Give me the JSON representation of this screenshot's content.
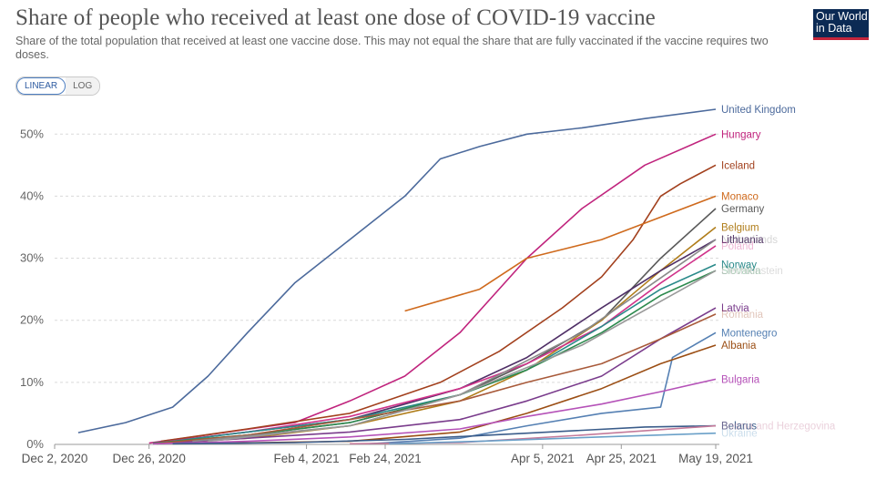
{
  "header": {
    "title": "Share of people who received at least one dose of COVID-19 vaccine",
    "subtitle": "Share of the total population that received at least one vaccine dose. This may not equal the share that are fully vaccinated if the vaccine requires two doses.",
    "logo_line1": "Our World",
    "logo_line2": "in Data"
  },
  "controls": {
    "linear_label": "LINEAR",
    "log_label": "LOG",
    "active": "LINEAR"
  },
  "chart_data": {
    "type": "line",
    "title": "Share of people who received at least one dose of COVID-19 vaccine",
    "ylabel": "",
    "xlabel": "",
    "ylim": [
      0,
      54
    ],
    "xlim": [
      "2020-12-02",
      "2021-05-19"
    ],
    "x_ticks": [
      "Dec 2, 2020",
      "Dec 26, 2020",
      "Feb 4, 2021",
      "Feb 24, 2021",
      "Apr 5, 2021",
      "Apr 25, 2021",
      "May 19, 2021"
    ],
    "x_tick_dates": [
      "2020-12-02",
      "2020-12-26",
      "2021-02-04",
      "2021-02-24",
      "2021-04-05",
      "2021-04-25",
      "2021-05-19"
    ],
    "y_ticks": [
      0,
      10,
      20,
      30,
      40,
      50
    ],
    "y_tick_labels": [
      "0%",
      "10%",
      "20%",
      "30%",
      "40%",
      "50%"
    ],
    "grid": true,
    "legend": "right-end labels",
    "series": [
      {
        "name": "United Kingdom",
        "color": "#4c6a9c",
        "x": [
          "2020-12-08",
          "2020-12-20",
          "2021-01-01",
          "2021-01-10",
          "2021-01-20",
          "2021-02-01",
          "2021-02-15",
          "2021-03-01",
          "2021-03-10",
          "2021-03-20",
          "2021-04-01",
          "2021-04-15",
          "2021-05-01",
          "2021-05-19"
        ],
        "y": [
          1.9,
          3.5,
          6,
          11,
          18,
          26,
          33,
          40,
          46,
          48,
          50,
          51,
          52.5,
          54
        ]
      },
      {
        "name": "Hungary",
        "color": "#c0247d",
        "x": [
          "2020-12-26",
          "2021-01-15",
          "2021-02-01",
          "2021-02-15",
          "2021-03-01",
          "2021-03-15",
          "2021-04-01",
          "2021-04-15",
          "2021-05-01",
          "2021-05-19"
        ],
        "y": [
          0.2,
          2.0,
          3.5,
          7,
          11,
          18,
          30,
          38,
          45,
          50
        ]
      },
      {
        "name": "Iceland",
        "color": "#a2401d",
        "x": [
          "2020-12-29",
          "2021-01-20",
          "2021-02-15",
          "2021-03-10",
          "2021-03-25",
          "2021-04-10",
          "2021-04-20",
          "2021-04-28",
          "2021-05-05",
          "2021-05-10",
          "2021-05-19"
        ],
        "y": [
          0.5,
          2.5,
          5,
          10,
          15,
          22,
          27,
          33,
          40,
          42,
          45
        ]
      },
      {
        "name": "Monaco",
        "color": "#cf6a1d",
        "x": [
          "2021-03-01",
          "2021-03-20",
          "2021-04-01",
          "2021-04-20",
          "2021-05-19"
        ],
        "y": [
          21.5,
          25,
          30,
          33,
          40
        ]
      },
      {
        "name": "Germany",
        "color": "#5a5a5a",
        "x": [
          "2020-12-27",
          "2021-01-20",
          "2021-02-15",
          "2021-03-15",
          "2021-04-01",
          "2021-04-20",
          "2021-05-05",
          "2021-05-19"
        ],
        "y": [
          0.2,
          1.5,
          3.5,
          8,
          13,
          20,
          30,
          38
        ]
      },
      {
        "name": "Belgium",
        "color": "#b07d1a",
        "x": [
          "2020-12-28",
          "2021-01-20",
          "2021-02-15",
          "2021-03-15",
          "2021-04-01",
          "2021-04-20",
          "2021-05-05",
          "2021-05-19"
        ],
        "y": [
          0.1,
          1.0,
          3.0,
          7,
          12,
          20,
          28,
          35
        ]
      },
      {
        "name": "Lithuania",
        "color": "#4f2f66",
        "x": [
          "2020-12-27",
          "2021-01-20",
          "2021-02-15",
          "2021-03-15",
          "2021-04-01",
          "2021-04-20",
          "2021-05-05",
          "2021-05-19"
        ],
        "y": [
          0.2,
          2.0,
          4.0,
          9,
          14,
          22,
          28,
          33
        ]
      },
      {
        "name": "Poland",
        "color": "#d0338a",
        "x": [
          "2020-12-27",
          "2021-01-20",
          "2021-02-15",
          "2021-03-15",
          "2021-04-01",
          "2021-04-20",
          "2021-05-05",
          "2021-05-19"
        ],
        "y": [
          0.2,
          2.0,
          4.5,
          9,
          13,
          19,
          26,
          32
        ]
      },
      {
        "name": "Norway",
        "color": "#2a8a8a",
        "x": [
          "2020-12-27",
          "2021-01-20",
          "2021-02-15",
          "2021-03-15",
          "2021-04-01",
          "2021-04-20",
          "2021-05-05",
          "2021-05-19"
        ],
        "y": [
          0.1,
          2.0,
          4.0,
          8,
          12,
          19,
          25,
          29
        ]
      },
      {
        "name": "Slovakia",
        "color": "#2d8a4e",
        "x": [
          "2020-12-27",
          "2021-01-20",
          "2021-02-15",
          "2021-03-15",
          "2021-04-01",
          "2021-04-20",
          "2021-05-05",
          "2021-05-19"
        ],
        "y": [
          0.2,
          1.5,
          3.5,
          8,
          12,
          18,
          24,
          28
        ]
      },
      {
        "name": "Latvia",
        "color": "#7a3c8c",
        "x": [
          "2020-12-28",
          "2021-01-20",
          "2021-02-15",
          "2021-03-15",
          "2021-04-01",
          "2021-04-20",
          "2021-05-05",
          "2021-05-19"
        ],
        "y": [
          0.1,
          1.0,
          2.0,
          4,
          7,
          11,
          17,
          22
        ]
      },
      {
        "name": "Romania",
        "color": "#a85a3a",
        "x": [
          "2020-12-27",
          "2021-01-20",
          "2021-02-15",
          "2021-03-15",
          "2021-04-01",
          "2021-04-20",
          "2021-05-05",
          "2021-05-19"
        ],
        "y": [
          0.1,
          1.5,
          4.0,
          7,
          10,
          13,
          17,
          21
        ]
      },
      {
        "name": "Montenegro",
        "color": "#5580b3",
        "x": [
          "2021-02-20",
          "2021-03-15",
          "2021-04-01",
          "2021-04-20",
          "2021-05-05",
          "2021-05-08",
          "2021-05-19"
        ],
        "y": [
          0.1,
          1.0,
          3.0,
          5,
          6,
          14,
          18
        ]
      },
      {
        "name": "Albania",
        "color": "#9b4e14",
        "x": [
          "2021-01-15",
          "2021-02-15",
          "2021-03-15",
          "2021-04-01",
          "2021-04-20",
          "2021-05-05",
          "2021-05-19"
        ],
        "y": [
          0.2,
          0.5,
          2,
          5,
          9,
          13,
          16
        ]
      },
      {
        "name": "Bulgaria",
        "color": "#b552b8",
        "x": [
          "2020-12-27",
          "2021-01-20",
          "2021-02-15",
          "2021-03-15",
          "2021-04-01",
          "2021-04-20",
          "2021-05-05",
          "2021-05-19"
        ],
        "y": [
          0.1,
          0.5,
          1.2,
          2.5,
          4.5,
          6.5,
          8.5,
          10.5
        ]
      },
      {
        "name": "Belarus",
        "color": "#3a5c8a",
        "x": [
          "2021-01-01",
          "2021-02-01",
          "2021-03-01",
          "2021-04-01",
          "2021-05-01",
          "2021-05-19"
        ],
        "y": [
          0.1,
          0.3,
          0.8,
          1.8,
          2.8,
          3.0
        ]
      },
      {
        "name": "Bosnia and Herzegovina",
        "color": "#c47a9a",
        "x": [
          "2021-02-15",
          "2021-03-15",
          "2021-04-15",
          "2021-05-19"
        ],
        "y": [
          0.1,
          0.3,
          1.5,
          3.0
        ]
      },
      {
        "name": "Ukraine",
        "color": "#6aa0c8",
        "x": [
          "2021-02-25",
          "2021-03-20",
          "2021-04-20",
          "2021-05-19"
        ],
        "y": [
          0.1,
          0.5,
          1.2,
          1.8
        ]
      },
      {
        "name": "Netherlands",
        "color": "#8a8a8a",
        "x": [
          "2021-01-06",
          "2021-02-15",
          "2021-03-15",
          "2021-04-15",
          "2021-05-19"
        ],
        "y": [
          0.5,
          3,
          8,
          18,
          33
        ]
      },
      {
        "name": "Liechtenstein",
        "color": "#999999",
        "x": [
          "2021-01-10",
          "2021-02-15",
          "2021-03-15",
          "2021-04-15",
          "2021-05-19"
        ],
        "y": [
          0.5,
          3,
          8,
          16,
          28
        ]
      }
    ]
  }
}
